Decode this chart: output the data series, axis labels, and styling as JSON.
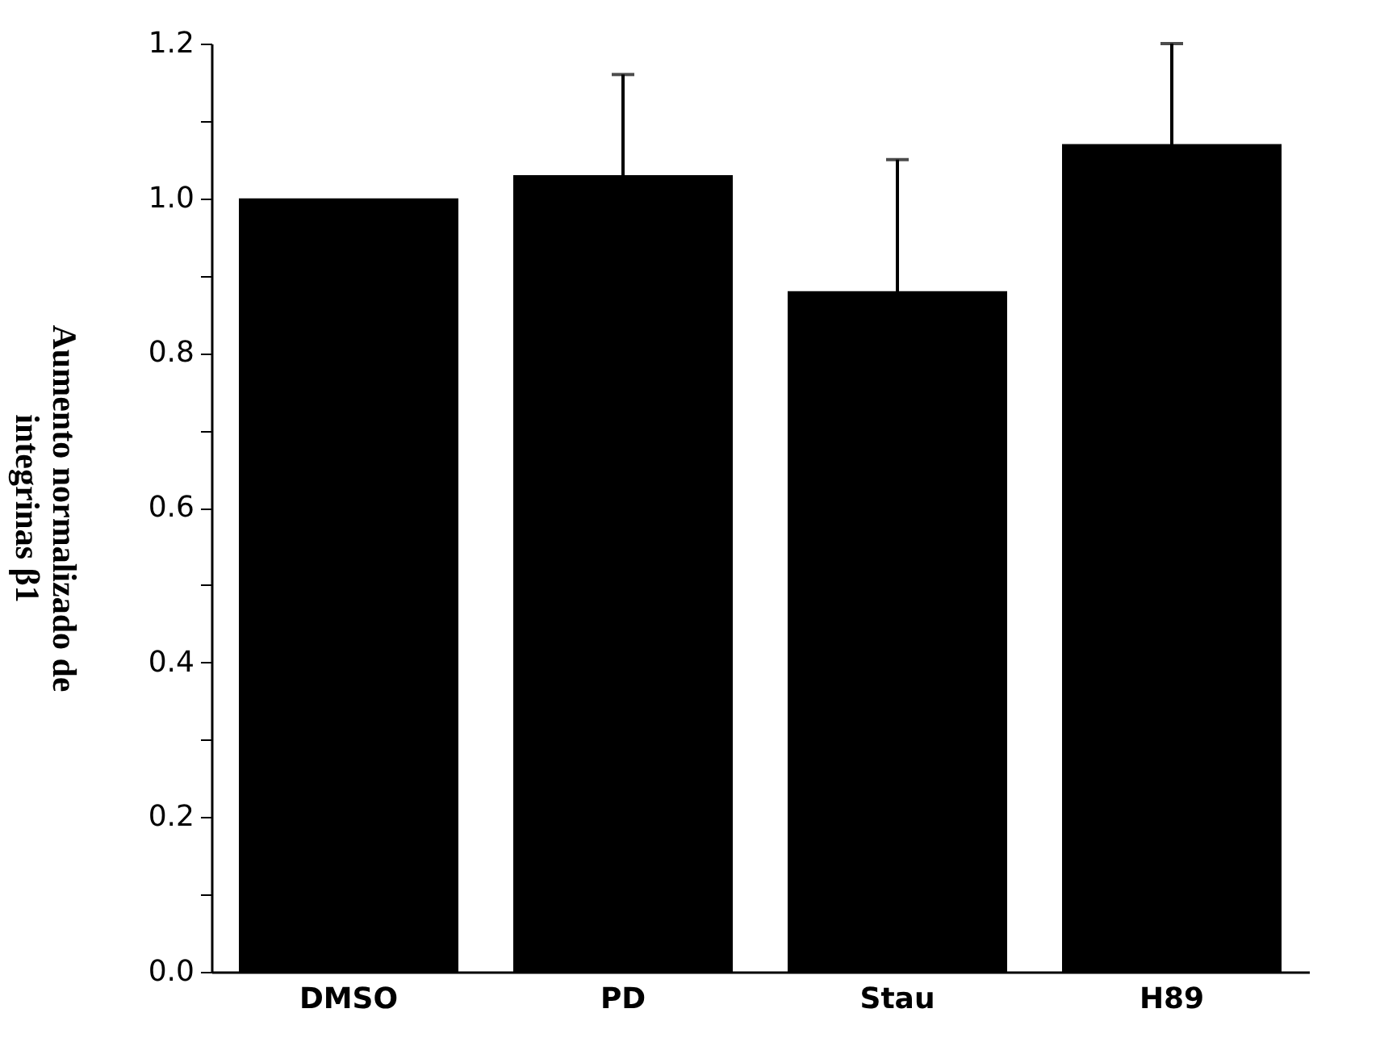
{
  "chart_data": {
    "type": "bar",
    "ylabel": "Aumento normalizado de\nintegrinas β1",
    "categories": [
      "DMSO",
      "PD",
      "Stau",
      "H89"
    ],
    "values": [
      1.0,
      1.03,
      0.88,
      1.07
    ],
    "errors": [
      null,
      0.13,
      0.17,
      0.13
    ],
    "color": "#000000",
    "ylim": [
      0,
      1.2
    ],
    "yticks": [
      {
        "value": 0,
        "label": "0.0"
      },
      {
        "value": 0.1,
        "label": null
      },
      {
        "value": 0.2,
        "label": "0.2"
      },
      {
        "value": 0.3,
        "label": null
      },
      {
        "value": 0.4,
        "label": "0.4"
      },
      {
        "value": 0.5,
        "label": null
      },
      {
        "value": 0.6,
        "label": "0.6"
      },
      {
        "value": 0.7,
        "label": null
      },
      {
        "value": 0.8,
        "label": "0.8"
      },
      {
        "value": 0.9,
        "label": null
      },
      {
        "value": 1,
        "label": "1.0"
      },
      {
        "value": 1.1,
        "label": null
      },
      {
        "value": 1.2,
        "label": "1.2"
      }
    ],
    "grid": false
  }
}
